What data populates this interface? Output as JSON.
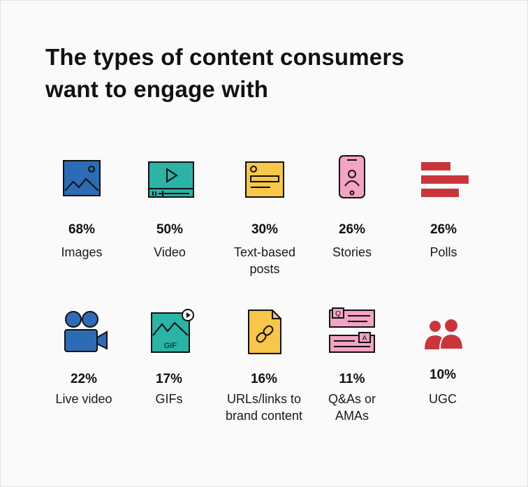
{
  "title": {
    "line1": "The types of content consumers",
    "line2": "want to engage with"
  },
  "chart_data": {
    "type": "table",
    "title": "The types of content consumers want to engage with",
    "unit": "%",
    "items": [
      {
        "value": 68,
        "value_label": "68%",
        "label_lines": [
          "Images"
        ],
        "icon": "image-icon",
        "color": "#2d6cb5"
      },
      {
        "value": 50,
        "value_label": "50%",
        "label_lines": [
          "Video"
        ],
        "icon": "video-icon",
        "color": "#2bb3a6"
      },
      {
        "value": 30,
        "value_label": "30%",
        "label_lines": [
          "Text-based",
          "posts"
        ],
        "icon": "text-post-icon",
        "color": "#f7c64a"
      },
      {
        "value": 26,
        "value_label": "26%",
        "label_lines": [
          "Stories"
        ],
        "icon": "phone-stories-icon",
        "color": "#f3a3c4"
      },
      {
        "value": 26,
        "value_label": "26%",
        "label_lines": [
          "Polls"
        ],
        "icon": "poll-bars-icon",
        "color": "#c8363c"
      },
      {
        "value": 22,
        "value_label": "22%",
        "label_lines": [
          "Live video"
        ],
        "icon": "video-camera-icon",
        "color": "#2d6cb5"
      },
      {
        "value": 17,
        "value_label": "17%",
        "label_lines": [
          "GIFs"
        ],
        "icon": "gif-icon",
        "color": "#2bb3a6"
      },
      {
        "value": 16,
        "value_label": "16%",
        "label_lines": [
          "URLs/links to",
          "brand content"
        ],
        "icon": "link-document-icon",
        "color": "#f7c64a"
      },
      {
        "value": 11,
        "value_label": "11%",
        "label_lines": [
          "Q&As or",
          "AMAs"
        ],
        "icon": "qa-cards-icon",
        "color": "#f3a3c4"
      },
      {
        "value": 10,
        "value_label": "10%",
        "label_lines": [
          "UGC"
        ],
        "icon": "people-icon",
        "color": "#c8363c"
      }
    ]
  },
  "colors": {
    "ink": "#111111",
    "background": "#fafafa"
  }
}
